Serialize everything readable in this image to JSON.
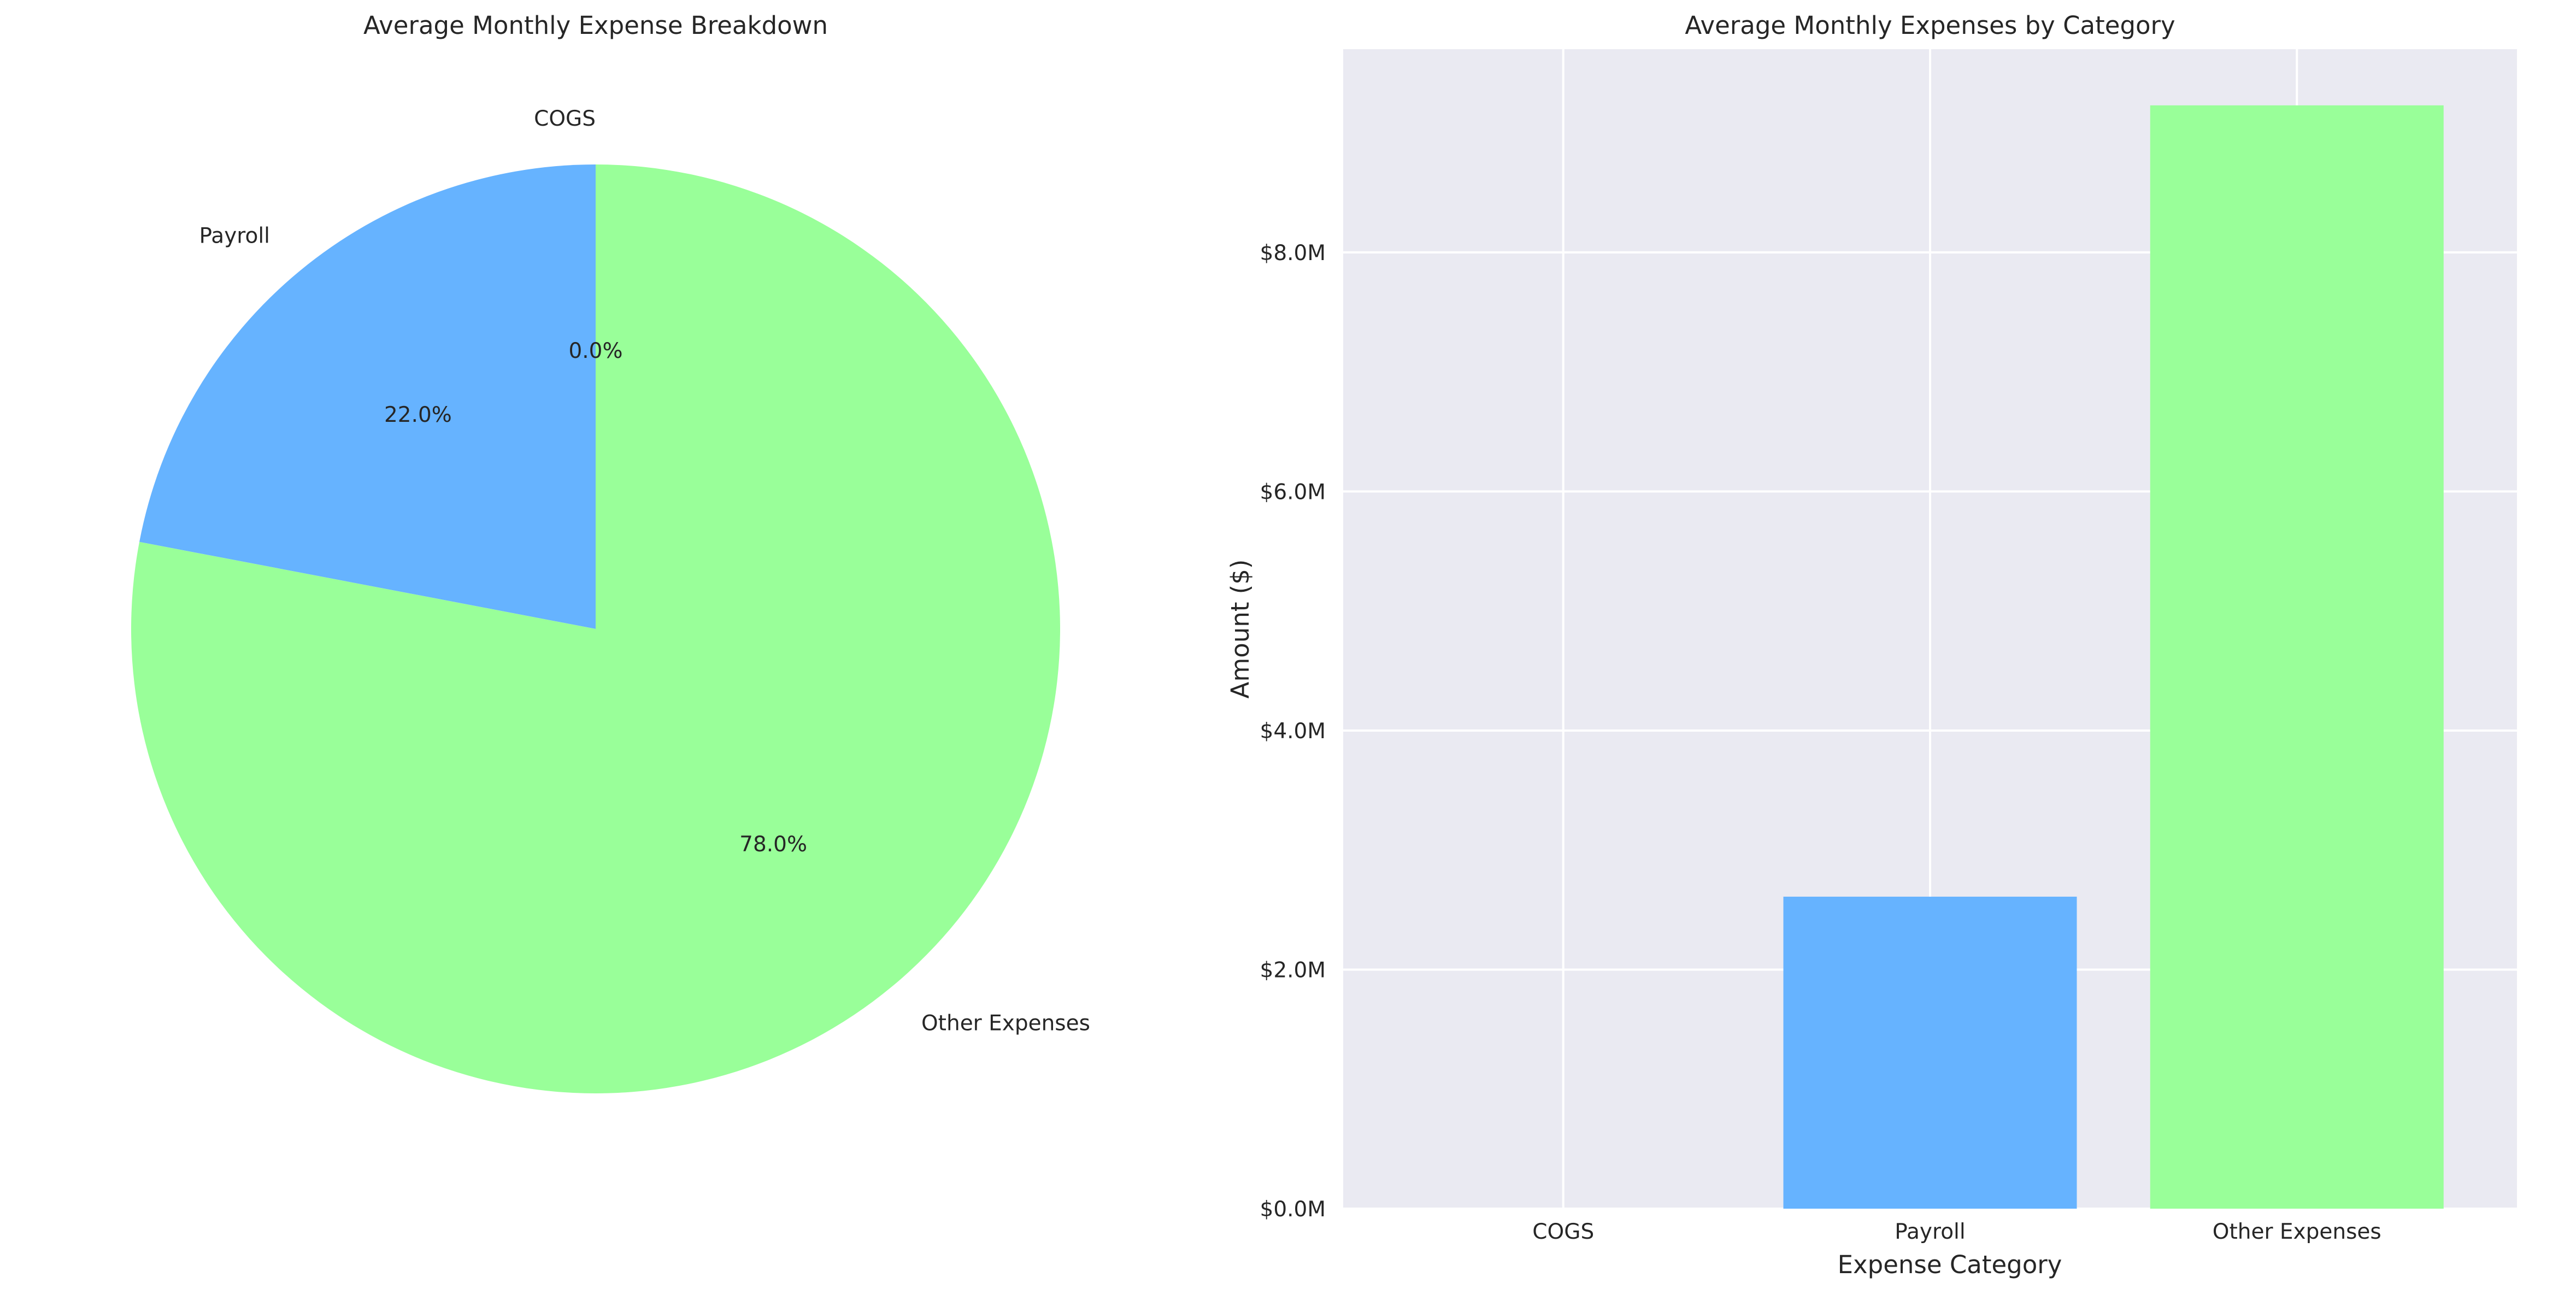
{
  "chart_data": [
    {
      "type": "pie",
      "title": "Average Monthly Expense Breakdown",
      "categories": [
        "COGS",
        "Payroll",
        "Other Expenses"
      ],
      "values": [
        0.0,
        22.0,
        78.0
      ],
      "pct_labels": [
        "0.0%",
        "22.0%",
        "78.0%"
      ],
      "colors": [
        "#ff9999",
        "#66b3ff",
        "#99ff99"
      ],
      "start_angle_deg": 90,
      "direction": "counterclockwise"
    },
    {
      "type": "bar",
      "title": "Average Monthly Expenses by Category",
      "xlabel": "Expense Category",
      "ylabel": "Amount ($)",
      "categories": [
        "COGS",
        "Payroll",
        "Other Expenses"
      ],
      "values": [
        0,
        2610000,
        9230000
      ],
      "colors": [
        "#ff9999",
        "#66b3ff",
        "#99ff99"
      ],
      "ylim": [
        0,
        9700000
      ],
      "yticks": [
        0,
        2000000,
        4000000,
        6000000,
        8000000
      ],
      "ytick_labels": [
        "$0.0M",
        "$2.0M",
        "$4.0M",
        "$6.0M",
        "$8.0M"
      ],
      "grid": true,
      "background": "#eaeaf2"
    }
  ]
}
